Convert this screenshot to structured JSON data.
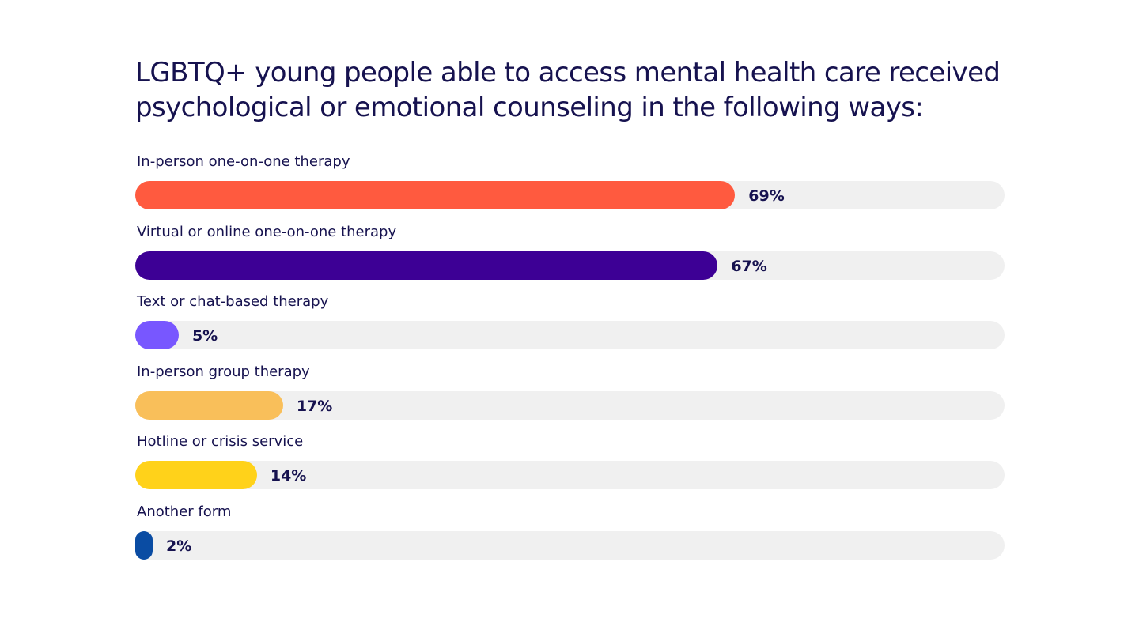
{
  "chart_data": {
    "type": "bar",
    "orientation": "horizontal",
    "title": "LGBTQ+ young people able to access mental health care received psychological or emotional counseling in the following ways:",
    "categories": [
      "In-person one-on-one therapy",
      "Virtual or online one-on-one therapy",
      "Text or chat-based therapy",
      "In-person group therapy",
      "Hotline or crisis service",
      "Another form"
    ],
    "values": [
      69,
      67,
      5,
      17,
      14,
      2
    ],
    "value_labels": [
      "69%",
      "67%",
      "5%",
      "17%",
      "14%",
      "2%"
    ],
    "colors": [
      "#ff5a3f",
      "#3d0095",
      "#7857ff",
      "#f9bf5a",
      "#ffd21a",
      "#0a4ca3"
    ],
    "track_color": "#f0f0f0",
    "xlim": [
      0,
      100
    ],
    "grid": false,
    "legend": "none"
  }
}
